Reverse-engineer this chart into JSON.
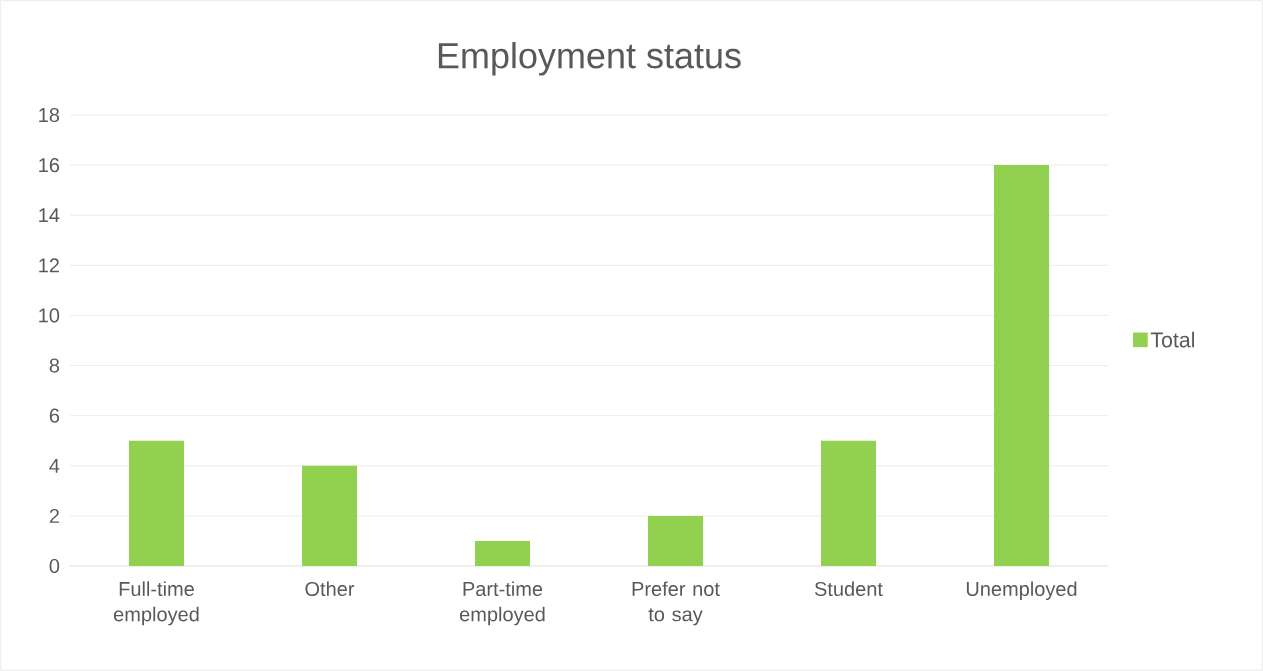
{
  "chart_data": {
    "type": "bar",
    "title": "Employment status",
    "categories": [
      "Full-time employed",
      "Other",
      "Part-time employed",
      "Prefer not to say",
      "Student",
      "Unemployed"
    ],
    "series": [
      {
        "name": "Total",
        "color": "#92d050",
        "values": [
          5,
          4,
          1,
          2,
          5,
          16
        ]
      }
    ],
    "ylim": [
      0,
      18
    ],
    "yticks": [
      0,
      2,
      4,
      6,
      8,
      10,
      12,
      14,
      16,
      18
    ],
    "grid": "y",
    "legend": "right"
  }
}
